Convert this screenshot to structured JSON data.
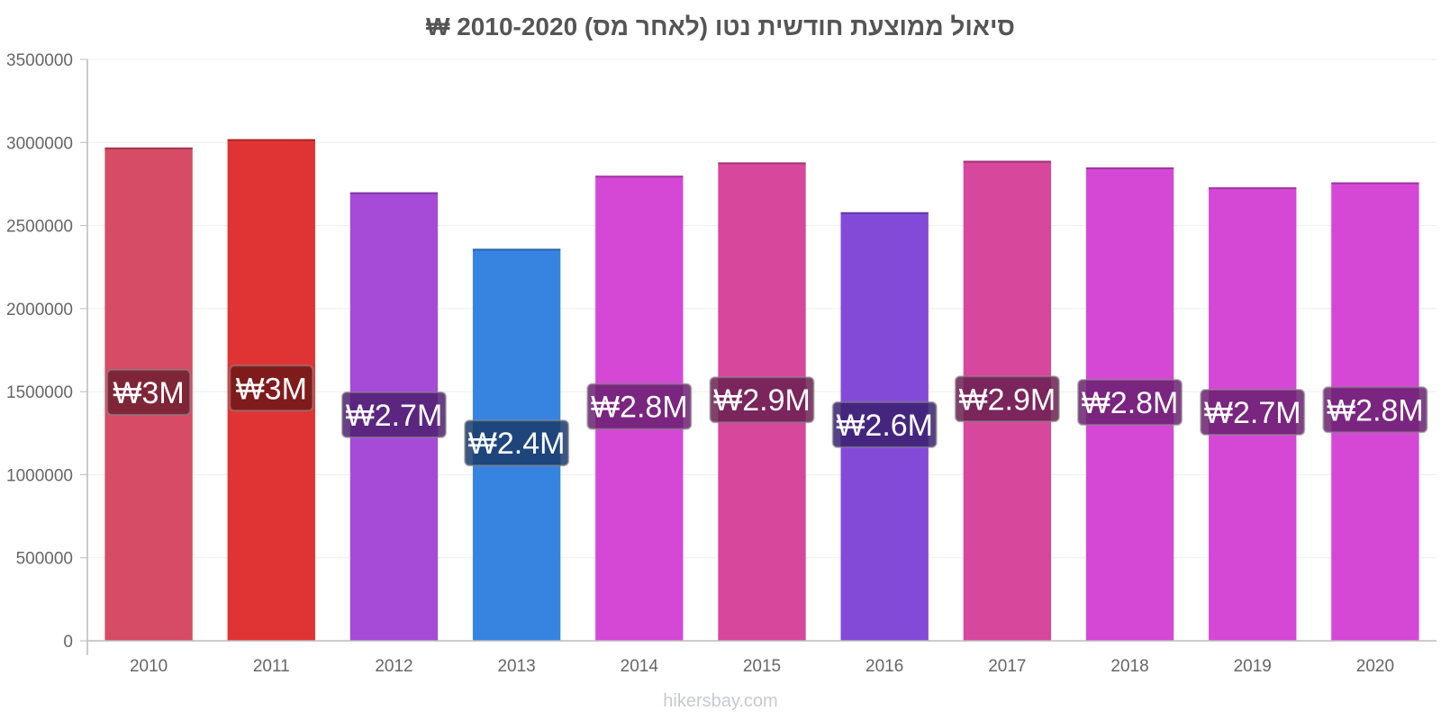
{
  "chart_data": {
    "type": "bar",
    "title": "סיאול ממוצעת חודשית נטו (לאחר מס) 2010-2020 ₩",
    "xlabel": "",
    "ylabel": "",
    "ylim": [
      0,
      3500000
    ],
    "yticks": [
      0,
      500000,
      1000000,
      1500000,
      2000000,
      2500000,
      3000000,
      3500000
    ],
    "ytick_labels": [
      "0",
      "500000",
      "1000000",
      "1500000",
      "2000000",
      "2500000",
      "3000000",
      "3500000"
    ],
    "grid": true,
    "categories": [
      "2010",
      "2011",
      "2012",
      "2013",
      "2014",
      "2015",
      "2016",
      "2017",
      "2018",
      "2019",
      "2020"
    ],
    "values": [
      2970000,
      3020000,
      2700000,
      2360000,
      2800000,
      2880000,
      2580000,
      2890000,
      2850000,
      2730000,
      2760000
    ],
    "data_labels": [
      "₩3M",
      "₩3M",
      "₩2.7M",
      "₩2.4M",
      "₩2.8M",
      "₩2.9M",
      "₩2.6M",
      "₩2.9M",
      "₩2.8M",
      "₩2.7M",
      "₩2.8M"
    ],
    "colors": [
      "#d64b66",
      "#e03434",
      "#a64ad8",
      "#3784e0",
      "#d548d6",
      "#d7479c",
      "#834ad8",
      "#d7479c",
      "#d548d6",
      "#d548d6",
      "#d548d6"
    ],
    "label_colors": [
      "#6e2030",
      "#6e1818",
      "#4e2070",
      "#1a3a6a",
      "#6a2070",
      "#6a2050",
      "#3a2070",
      "#6a2050",
      "#6a2070",
      "#6a2070",
      "#6a2070"
    ]
  },
  "watermark": "hikersbay.com"
}
